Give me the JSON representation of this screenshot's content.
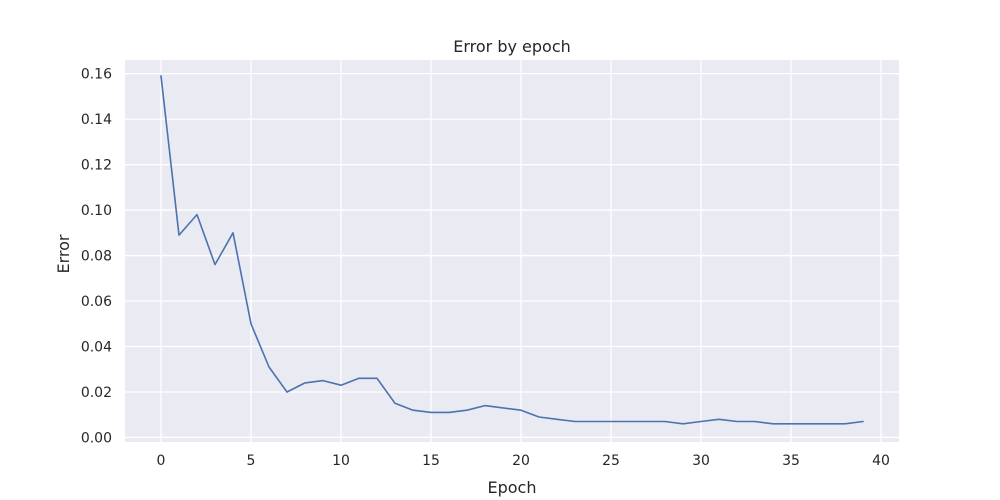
{
  "chart_data": {
    "type": "line",
    "title": "Error by epoch",
    "xlabel": "Epoch",
    "ylabel": "Error",
    "xlim": [
      -2,
      41
    ],
    "ylim": [
      -0.002,
      0.166
    ],
    "xticks": [
      0,
      5,
      10,
      15,
      20,
      25,
      30,
      35,
      40
    ],
    "yticks": [
      0.0,
      0.02,
      0.04,
      0.06,
      0.08,
      0.1,
      0.12,
      0.14,
      0.16
    ],
    "grid": true,
    "legend": "none",
    "series": [
      {
        "color": "#4c72b0",
        "x": [
          0,
          1,
          2,
          3,
          4,
          5,
          6,
          7,
          8,
          9,
          10,
          11,
          12,
          13,
          14,
          15,
          16,
          17,
          18,
          19,
          20,
          21,
          22,
          23,
          24,
          25,
          26,
          27,
          28,
          29,
          30,
          31,
          32,
          33,
          34,
          35,
          36,
          37,
          38,
          39
        ],
        "y": [
          0.159,
          0.089,
          0.098,
          0.076,
          0.09,
          0.05,
          0.031,
          0.02,
          0.024,
          0.025,
          0.023,
          0.026,
          0.026,
          0.015,
          0.012,
          0.011,
          0.011,
          0.012,
          0.014,
          0.013,
          0.012,
          0.009,
          0.008,
          0.007,
          0.007,
          0.007,
          0.007,
          0.007,
          0.007,
          0.006,
          0.007,
          0.008,
          0.007,
          0.007,
          0.006,
          0.006,
          0.006,
          0.006,
          0.006,
          0.007
        ]
      }
    ]
  },
  "style": {
    "plot_background": "#eaeaf2",
    "grid_color": "#ffffff",
    "text_color": "#262626"
  }
}
